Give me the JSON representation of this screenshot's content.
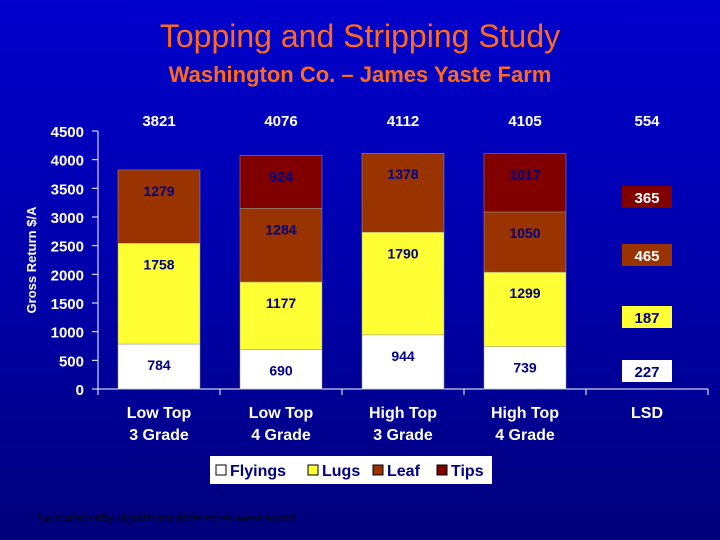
{
  "header": {
    "title": "Topping and Stripping Study",
    "subtitle": "Washington Co. – James Yaste Farm"
  },
  "footnote": "No statistically significant differences were found",
  "chart_data": {
    "type": "bar",
    "stacked": true,
    "title": "Topping and Stripping Study",
    "subtitle": "Washington Co. – James Yaste Farm",
    "ylabel": "Gross Return $/A",
    "xlabel": "",
    "ylim": [
      0,
      4500
    ],
    "yticks": [
      0,
      500,
      1000,
      1500,
      2000,
      2500,
      3000,
      3500,
      4000,
      4500
    ],
    "categories": [
      [
        "Low Top",
        "3 Grade"
      ],
      [
        "Low Top",
        "4 Grade"
      ],
      [
        "High Top",
        "3 Grade"
      ],
      [
        "High Top",
        "4 Grade"
      ]
    ],
    "totals": [
      3821,
      4076,
      4112,
      4105
    ],
    "series": [
      {
        "name": "Flyings",
        "color": "#ffffff",
        "values": [
          784,
          690,
          944,
          739
        ]
      },
      {
        "name": "Lugs",
        "color": "#ffff33",
        "values": [
          1758,
          1177,
          1790,
          1299
        ]
      },
      {
        "name": "Leaf",
        "color": "#993300",
        "values": [
          1279,
          1284,
          1378,
          1050
        ]
      },
      {
        "name": "Tips",
        "color": "#800000",
        "values": [
          0,
          924,
          0,
          1017
        ]
      }
    ],
    "lsd": {
      "label": "LSD",
      "total": 554,
      "values": {
        "Flyings": 227,
        "Lugs": 187,
        "Leaf": 465,
        "Tips": 365
      }
    },
    "legend": {
      "placement": "bottom"
    },
    "grid": false,
    "colors": {
      "axis_text": "#ffffff",
      "value_text": "#000080",
      "plot_background": "#ffffff"
    }
  }
}
